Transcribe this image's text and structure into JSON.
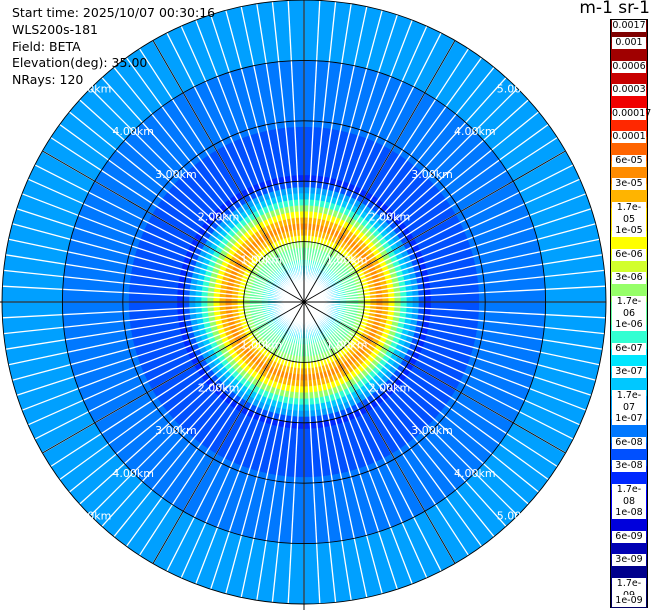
{
  "header": {
    "start_time": "Start time: 2025/10/07 00:30:16",
    "instrument": "WLS200s-181",
    "field": "Field: BETA",
    "elevation": "Elevation(deg): 35.00",
    "nrays": "NRays: 120"
  },
  "chart_data": {
    "type": "heatmap",
    "projection": "polar-ppi",
    "field": "BETA",
    "n_rays": 120,
    "elevation_deg": 35.0,
    "range_ring_labels": [
      "1.00km",
      "2.00km",
      "3.00km",
      "4.00km",
      "5.00km"
    ],
    "range_rings_km": [
      1,
      2,
      3,
      4,
      5
    ],
    "max_range_km": 5.0,
    "colorbar": {
      "title": "m-1 sr-1",
      "labels": [
        "0.0017",
        "0.001",
        "0.0006",
        "0.0003",
        "0.00017",
        "0.0001",
        "6e-05",
        "3e-05",
        "1.7e-05",
        "1e-05",
        "6e-06",
        "3e-06",
        "1.7e-06",
        "1e-06",
        "6e-07",
        "3e-07",
        "1.7e-07",
        "1e-07",
        "6e-08",
        "3e-08",
        "1.7e-08",
        "1e-08",
        "6e-09",
        "3e-09",
        "1.7e-09",
        "1e-09"
      ],
      "colors": [
        "#7f0000",
        "#a00000",
        "#c80000",
        "#f00000",
        "#ff2800",
        "#ff6400",
        "#ff8c00",
        "#ffb400",
        "#ffdc00",
        "#ffff00",
        "#d2ff2d",
        "#96ff69",
        "#64ffa0",
        "#32ffd2",
        "#00e6ff",
        "#00c8ff",
        "#00a0ff",
        "#0078ff",
        "#0050ff",
        "#0028ff",
        "#0000ff",
        "#0000dc",
        "#0000b4",
        "#00008c",
        "#000064"
      ]
    },
    "profile": [
      {
        "range_km": 0.0,
        "value": 1.7e-07
      },
      {
        "range_km": 0.5,
        "value": 3e-07
      },
      {
        "range_km": 0.75,
        "value": 1e-06
      },
      {
        "range_km": 1.0,
        "value": 3e-06
      },
      {
        "range_km": 1.2,
        "value": 6e-05
      },
      {
        "range_km": 1.4,
        "value": 1.7e-05
      },
      {
        "range_km": 1.6,
        "value": 1e-06
      },
      {
        "range_km": 2.0,
        "value": 3e-08
      },
      {
        "range_km": 3.0,
        "value": 6e-08
      },
      {
        "range_km": 4.0,
        "value": 1e-07
      },
      {
        "range_km": 5.0,
        "value": 1e-07
      }
    ]
  }
}
